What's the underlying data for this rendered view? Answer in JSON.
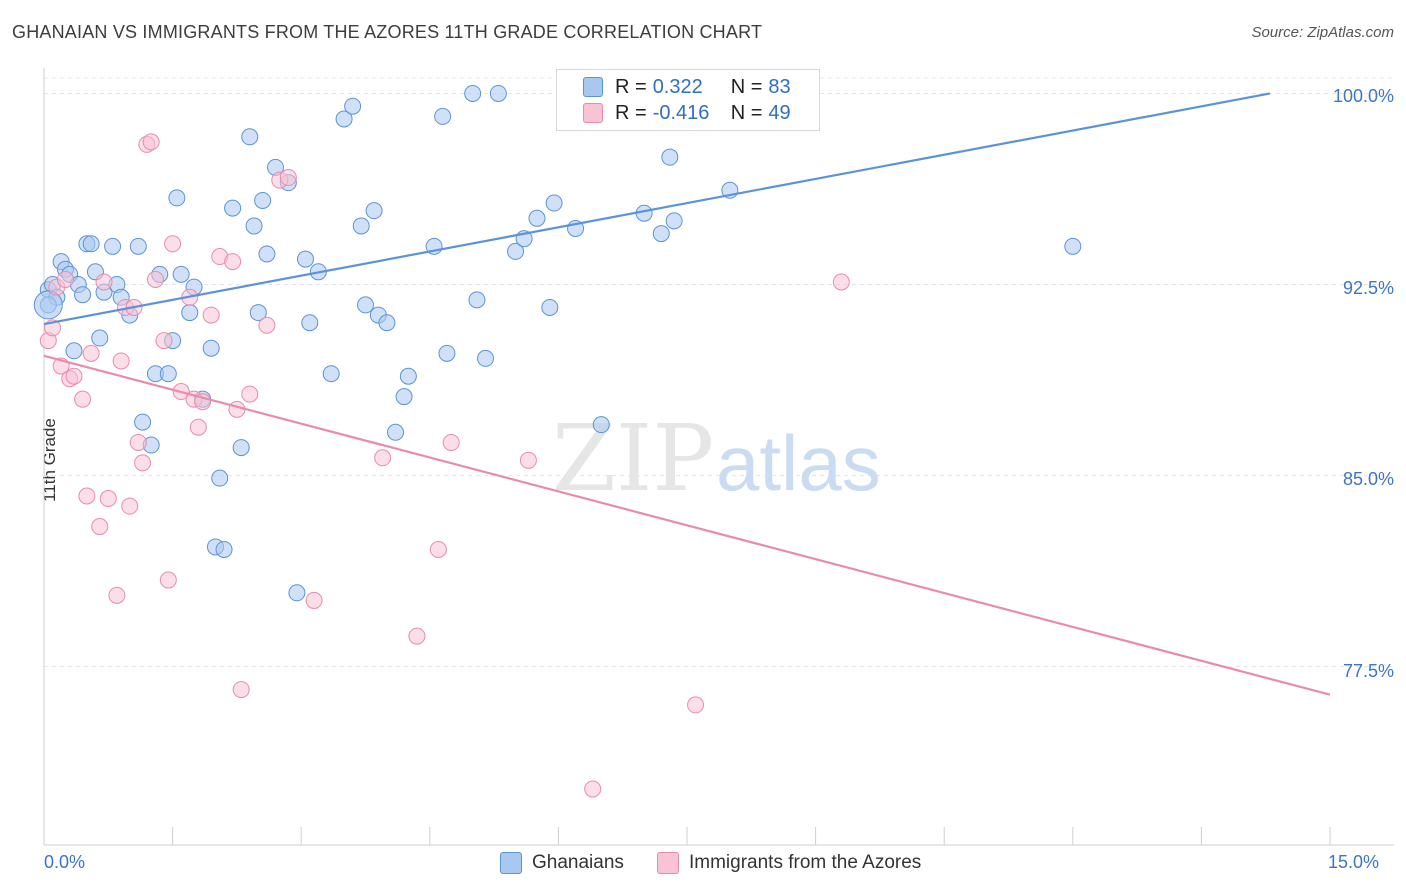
{
  "title": "GHANAIAN VS IMMIGRANTS FROM THE AZORES 11TH GRADE CORRELATION CHART",
  "source": "Source: ZipAtlas.com",
  "watermark": {
    "zip": "ZIP",
    "atlas": "atlas"
  },
  "legend": {
    "rows": [
      {
        "r_label": "R = ",
        "r_value": "0.322",
        "n_label": "N = ",
        "n_value": "83",
        "color": "#a9c8f0",
        "border": "#5b93d6"
      },
      {
        "r_label": "R = ",
        "r_value": "-0.416",
        "n_label": "N = ",
        "n_value": "49",
        "color": "#f8c3d4",
        "border": "#e98bab"
      }
    ]
  },
  "bottom_legend": [
    {
      "label": "Ghanaians",
      "color": "#a9c8f0",
      "border": "#5b93d6"
    },
    {
      "label": "Immigrants from the Azores",
      "color": "#f8c3d4",
      "border": "#e98bab"
    }
  ],
  "axis": {
    "y_label": "11th Grade",
    "y_ticks": [
      "100.0%",
      "92.5%",
      "85.0%",
      "77.5%"
    ],
    "x_ticks": [
      "0.0%",
      "15.0%"
    ]
  },
  "chart_data": {
    "type": "scatter",
    "xlim": [
      0,
      15
    ],
    "ylim": [
      70.5,
      101.0
    ],
    "xlabel": "",
    "ylabel": "11th Grade",
    "grid": true,
    "series": [
      {
        "name": "Ghanaians",
        "color": "#5b93d6",
        "fill": "#a9c8f0",
        "trend": {
          "x": [
            0,
            14.3
          ],
          "y": [
            90.95,
            100.0
          ]
        },
        "points": [
          [
            0.05,
            92.3
          ],
          [
            0.1,
            92.5
          ],
          [
            0.15,
            92.0
          ],
          [
            0.2,
            93.4
          ],
          [
            0.25,
            93.1
          ],
          [
            0.3,
            92.9
          ],
          [
            0.35,
            89.9
          ],
          [
            0.4,
            92.5
          ],
          [
            0.45,
            92.1
          ],
          [
            0.5,
            94.1
          ],
          [
            0.55,
            94.1
          ],
          [
            0.6,
            93.0
          ],
          [
            0.65,
            90.4
          ],
          [
            0.7,
            92.2
          ],
          [
            0.8,
            94.0
          ],
          [
            0.85,
            92.5
          ],
          [
            0.9,
            92.0
          ],
          [
            1.0,
            91.3
          ],
          [
            1.1,
            94.0
          ],
          [
            1.15,
            87.1
          ],
          [
            1.25,
            86.2
          ],
          [
            1.3,
            89.0
          ],
          [
            1.35,
            92.9
          ],
          [
            1.45,
            89.0
          ],
          [
            1.5,
            90.3
          ],
          [
            1.55,
            95.9
          ],
          [
            1.6,
            92.9
          ],
          [
            1.7,
            91.4
          ],
          [
            1.75,
            92.4
          ],
          [
            1.85,
            88.0
          ],
          [
            1.95,
            90.0
          ],
          [
            2.0,
            82.2
          ],
          [
            2.05,
            84.9
          ],
          [
            2.1,
            82.1
          ],
          [
            2.2,
            95.5
          ],
          [
            2.3,
            86.1
          ],
          [
            2.4,
            98.3
          ],
          [
            2.45,
            94.8
          ],
          [
            2.5,
            91.4
          ],
          [
            2.55,
            95.8
          ],
          [
            2.6,
            93.7
          ],
          [
            2.7,
            97.1
          ],
          [
            2.85,
            96.5
          ],
          [
            2.95,
            80.4
          ],
          [
            3.05,
            93.5
          ],
          [
            3.1,
            91.0
          ],
          [
            3.2,
            93.0
          ],
          [
            3.35,
            89.0
          ],
          [
            3.5,
            99.0
          ],
          [
            3.6,
            99.5
          ],
          [
            3.7,
            94.8
          ],
          [
            3.75,
            91.7
          ],
          [
            3.85,
            95.4
          ],
          [
            3.9,
            91.3
          ],
          [
            4.0,
            91.0
          ],
          [
            4.1,
            86.7
          ],
          [
            4.2,
            88.1
          ],
          [
            4.25,
            88.9
          ],
          [
            4.55,
            94.0
          ],
          [
            4.65,
            99.1
          ],
          [
            4.7,
            89.8
          ],
          [
            5.0,
            100.0
          ],
          [
            5.05,
            91.9
          ],
          [
            5.15,
            89.6
          ],
          [
            5.3,
            100.0
          ],
          [
            5.5,
            93.8
          ],
          [
            5.6,
            94.3
          ],
          [
            5.75,
            95.1
          ],
          [
            5.9,
            91.6
          ],
          [
            5.95,
            95.7
          ],
          [
            6.1,
            100.0
          ],
          [
            6.2,
            94.7
          ],
          [
            6.25,
            100.0
          ],
          [
            6.5,
            87.0
          ],
          [
            6.75,
            99.7
          ],
          [
            7.0,
            95.3
          ],
          [
            7.2,
            94.5
          ],
          [
            7.3,
            97.5
          ],
          [
            7.35,
            95.0
          ],
          [
            7.8,
            100.0
          ],
          [
            8.0,
            96.2
          ],
          [
            12.0,
            94.0
          ],
          [
            0.05,
            91.7
          ]
        ]
      },
      {
        "name": "Immigrants from the Azores",
        "color": "#e98bab",
        "fill": "#f8c3d4",
        "trend": {
          "x": [
            0,
            15
          ],
          "y": [
            89.7,
            76.4
          ]
        },
        "points": [
          [
            0.05,
            90.3
          ],
          [
            0.1,
            90.8
          ],
          [
            0.15,
            92.4
          ],
          [
            0.2,
            89.3
          ],
          [
            0.25,
            92.7
          ],
          [
            0.3,
            88.8
          ],
          [
            0.35,
            88.9
          ],
          [
            0.45,
            88.0
          ],
          [
            0.5,
            84.2
          ],
          [
            0.55,
            89.8
          ],
          [
            0.65,
            83.0
          ],
          [
            0.7,
            92.6
          ],
          [
            0.75,
            84.1
          ],
          [
            0.85,
            80.3
          ],
          [
            0.9,
            89.5
          ],
          [
            0.95,
            91.6
          ],
          [
            1.0,
            83.8
          ],
          [
            1.05,
            91.6
          ],
          [
            1.1,
            86.3
          ],
          [
            1.15,
            85.5
          ],
          [
            1.2,
            98.0
          ],
          [
            1.25,
            98.1
          ],
          [
            1.3,
            92.7
          ],
          [
            1.4,
            90.3
          ],
          [
            1.45,
            80.9
          ],
          [
            1.5,
            94.1
          ],
          [
            1.6,
            88.3
          ],
          [
            1.7,
            92.0
          ],
          [
            1.75,
            88.0
          ],
          [
            1.8,
            86.9
          ],
          [
            1.85,
            87.9
          ],
          [
            1.95,
            91.3
          ],
          [
            2.05,
            93.6
          ],
          [
            2.2,
            93.4
          ],
          [
            2.25,
            87.6
          ],
          [
            2.3,
            76.6
          ],
          [
            2.4,
            88.2
          ],
          [
            2.6,
            90.9
          ],
          [
            2.75,
            96.6
          ],
          [
            2.85,
            96.7
          ],
          [
            3.15,
            80.1
          ],
          [
            3.95,
            85.7
          ],
          [
            4.35,
            78.7
          ],
          [
            4.6,
            82.1
          ],
          [
            4.75,
            86.3
          ],
          [
            5.65,
            85.6
          ],
          [
            6.4,
            72.7
          ],
          [
            7.6,
            76.0
          ],
          [
            9.3,
            92.6
          ]
        ]
      }
    ]
  }
}
